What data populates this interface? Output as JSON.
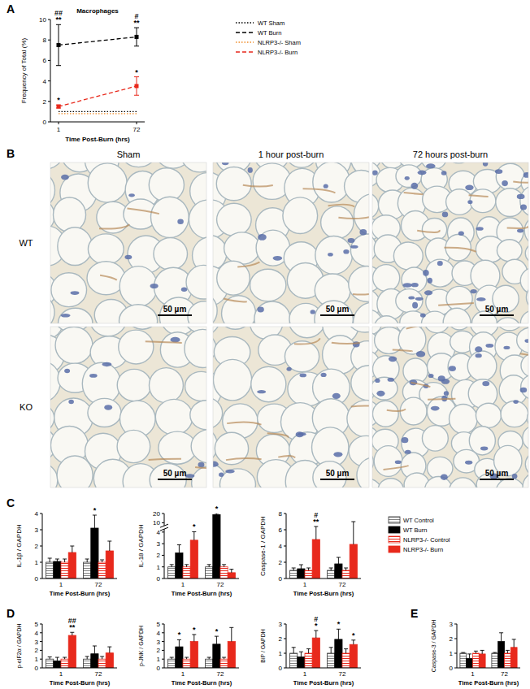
{
  "panel_labels": [
    "A",
    "B",
    "C",
    "D",
    "E"
  ],
  "chart_data": [
    {
      "type": "line",
      "title": "Macrophages",
      "x_label": "Time Post-Burn (hrs)",
      "y_label": "Frequency of Total (%)",
      "categories": [
        "1",
        "72"
      ],
      "ylim": [
        0,
        10
      ],
      "yticks": [
        0,
        2,
        4,
        6,
        8,
        10
      ],
      "legend": "right",
      "series": [
        {
          "name": "WT Sham",
          "color": "#000000",
          "line_style": "dotted",
          "marker": "none",
          "values": [
            1.0,
            1.0
          ]
        },
        {
          "name": "WT Burn",
          "color": "#000000",
          "line_style": "dashed",
          "marker": "square",
          "values": [
            7.5,
            8.3
          ],
          "errors": [
            2.0,
            0.9
          ]
        },
        {
          "name": "NLRP3-/- Sham",
          "color": "#f08c28",
          "line_style": "dotted",
          "marker": "none",
          "values": [
            0.8,
            0.8
          ]
        },
        {
          "name": "NLRP3-/- Burn",
          "color": "#e8291c",
          "line_style": "dashed",
          "marker": "square",
          "values": [
            1.5,
            3.5
          ],
          "errors": [
            0.15,
            0.9
          ]
        }
      ],
      "annotations": [
        {
          "text": "##",
          "x": "1",
          "series": "WT Burn"
        },
        {
          "text": "**",
          "x": "1",
          "series": "WT Burn"
        },
        {
          "text": "*",
          "x": "1",
          "series": "NLRP3-/- Burn"
        },
        {
          "text": "#",
          "x": "72",
          "series": "WT Burn"
        },
        {
          "text": "**",
          "x": "72",
          "series": "WT Burn"
        },
        {
          "text": "*",
          "x": "72",
          "series": "NLRP3-/- Burn"
        }
      ]
    },
    {
      "type": "bar",
      "x_label": "Time Post-Burn (hrs)",
      "y_label": "IL-1β / GAPDH",
      "categories": [
        "1",
        "72"
      ],
      "ylim": [
        0,
        4
      ],
      "yticks": [
        0,
        1,
        2,
        3,
        4
      ],
      "series": [
        {
          "name": "WT Control",
          "color": "#808080",
          "line_style": "hatched",
          "values": [
            1.0,
            1.0
          ],
          "errors": [
            0.25,
            0.2
          ]
        },
        {
          "name": "WT Burn",
          "color": "#000000",
          "line_style": "solid",
          "values": [
            1.05,
            3.1
          ],
          "errors": [
            0.15,
            0.8
          ]
        },
        {
          "name": "NLRP3-/- Control",
          "color": "#e8291c",
          "line_style": "hatched",
          "values": [
            1.0,
            1.0
          ],
          "errors": [
            0.2,
            0.15
          ]
        },
        {
          "name": "NLRP3-/- Burn",
          "color": "#e8291c",
          "line_style": "solid",
          "values": [
            1.6,
            1.7
          ],
          "errors": [
            0.4,
            0.6
          ]
        }
      ],
      "annotations": [
        {
          "text": "*",
          "x": "72",
          "series": "WT Burn"
        }
      ]
    },
    {
      "type": "bar",
      "x_label": "Time Post-Burn (hrs)",
      "y_label": "IL-18 / GAPDH",
      "categories": [
        "1",
        "72"
      ],
      "ylim": [
        0,
        20
      ],
      "yticks": [
        0,
        1,
        2,
        3,
        4,
        10,
        20
      ],
      "series": [
        {
          "name": "WT Control",
          "color": "#808080",
          "line_style": "hatched",
          "values": [
            1.0,
            1.0
          ],
          "errors": [
            0.2,
            0.2
          ]
        },
        {
          "name": "WT Burn",
          "color": "#000000",
          "line_style": "solid",
          "values": [
            2.2,
            18.8
          ],
          "errors": [
            0.7,
            1.2
          ]
        },
        {
          "name": "NLRP3-/- Control",
          "color": "#e8291c",
          "line_style": "hatched",
          "values": [
            1.0,
            1.0
          ],
          "errors": [
            0.2,
            0.2
          ]
        },
        {
          "name": "NLRP3-/- Burn",
          "color": "#e8291c",
          "line_style": "solid",
          "values": [
            3.3,
            0.5
          ],
          "errors": [
            0.9,
            0.3
          ]
        }
      ],
      "annotations": [
        {
          "text": "*",
          "x": "1",
          "series": "NLRP3-/- Burn"
        },
        {
          "text": "*",
          "x": "72",
          "series": "WT Burn"
        }
      ]
    },
    {
      "type": "bar",
      "x_label": "Time Post-Burn (hrs)",
      "y_label": "Caspase-1 / GAPDH",
      "categories": [
        "1",
        "72"
      ],
      "ylim": [
        0,
        8
      ],
      "yticks": [
        0,
        2,
        4,
        6,
        8
      ],
      "legend": "right",
      "series": [
        {
          "name": "WT Control",
          "color": "#808080",
          "line_style": "hatched",
          "values": [
            1.0,
            1.0
          ],
          "errors": [
            0.3,
            0.3
          ]
        },
        {
          "name": "WT Burn",
          "color": "#000000",
          "line_style": "solid",
          "values": [
            1.2,
            1.8
          ],
          "errors": [
            0.5,
            0.8
          ]
        },
        {
          "name": "NLRP3-/- Control",
          "color": "#e8291c",
          "line_style": "hatched",
          "values": [
            1.0,
            1.0
          ],
          "errors": [
            0.3,
            0.3
          ]
        },
        {
          "name": "NLRP3-/- Burn",
          "color": "#e8291c",
          "line_style": "solid",
          "values": [
            4.8,
            4.2
          ],
          "errors": [
            1.6,
            2.8
          ]
        }
      ],
      "annotations": [
        {
          "text": "#",
          "x": "1",
          "series": "NLRP3-/- Burn"
        },
        {
          "text": "**",
          "x": "1",
          "series": "NLRP3-/- Burn"
        }
      ]
    },
    {
      "type": "bar",
      "x_label": "Time Post-Burn (hrs)",
      "y_label": "p-eIF2α / GAPDH",
      "categories": [
        "1",
        "72"
      ],
      "ylim": [
        0,
        5
      ],
      "yticks": [
        0,
        1,
        2,
        3,
        4,
        5
      ],
      "series": [
        {
          "name": "WT Control",
          "color": "#808080",
          "line_style": "hatched",
          "values": [
            1.0,
            1.0
          ],
          "errors": [
            0.25,
            0.3
          ]
        },
        {
          "name": "WT Burn",
          "color": "#000000",
          "line_style": "solid",
          "values": [
            0.8,
            1.6
          ],
          "errors": [
            0.4,
            0.9
          ]
        },
        {
          "name": "NLRP3-/- Control",
          "color": "#e8291c",
          "line_style": "hatched",
          "values": [
            1.0,
            1.0
          ],
          "errors": [
            0.2,
            0.3
          ]
        },
        {
          "name": "NLRP3-/- Burn",
          "color": "#e8291c",
          "line_style": "solid",
          "values": [
            3.7,
            1.7
          ],
          "errors": [
            0.35,
            0.7
          ]
        }
      ],
      "annotations": [
        {
          "text": "##",
          "x": "1",
          "series": "NLRP3-/- Burn"
        },
        {
          "text": "**",
          "x": "1",
          "series": "NLRP3-/- Burn"
        }
      ]
    },
    {
      "type": "bar",
      "x_label": "Time Post-Burn (hrs)",
      "y_label": "p-JNK / GAPDH",
      "categories": [
        "1",
        "72"
      ],
      "ylim": [
        0,
        5
      ],
      "yticks": [
        0,
        1,
        2,
        3,
        4,
        5
      ],
      "series": [
        {
          "name": "WT Control",
          "color": "#808080",
          "line_style": "hatched",
          "values": [
            1.0,
            1.0
          ],
          "errors": [
            0.2,
            0.2
          ]
        },
        {
          "name": "WT Burn",
          "color": "#000000",
          "line_style": "solid",
          "values": [
            2.4,
            2.7
          ],
          "errors": [
            0.8,
            0.9
          ]
        },
        {
          "name": "NLRP3-/- Control",
          "color": "#e8291c",
          "line_style": "hatched",
          "values": [
            1.0,
            1.0
          ],
          "errors": [
            0.2,
            0.2
          ]
        },
        {
          "name": "NLRP3-/- Burn",
          "color": "#e8291c",
          "line_style": "solid",
          "values": [
            3.0,
            3.0
          ],
          "errors": [
            0.8,
            1.6
          ]
        }
      ],
      "annotations": [
        {
          "text": "*",
          "x": "1",
          "series": "WT Burn"
        },
        {
          "text": "*",
          "x": "1",
          "series": "NLRP3-/- Burn"
        },
        {
          "text": "*",
          "x": "72",
          "series": "WT Burn"
        }
      ]
    },
    {
      "type": "bar",
      "x_label": "Time Post-Burn (hrs)",
      "y_label": "BiP / GAPDH",
      "categories": [
        "1",
        "72"
      ],
      "ylim": [
        0,
        3
      ],
      "yticks": [
        0,
        1,
        2,
        3
      ],
      "series": [
        {
          "name": "WT Control",
          "color": "#808080",
          "line_style": "hatched",
          "values": [
            1.0,
            1.0
          ],
          "errors": [
            0.4,
            0.4
          ]
        },
        {
          "name": "WT Burn",
          "color": "#000000",
          "line_style": "solid",
          "values": [
            0.75,
            1.95
          ],
          "errors": [
            0.35,
            0.7
          ]
        },
        {
          "name": "NLRP3-/- Control",
          "color": "#e8291c",
          "line_style": "hatched",
          "values": [
            1.0,
            1.0
          ],
          "errors": [
            0.3,
            0.3
          ]
        },
        {
          "name": "NLRP3-/- Burn",
          "color": "#e8291c",
          "line_style": "solid",
          "values": [
            2.05,
            1.6
          ],
          "errors": [
            0.5,
            0.3
          ]
        }
      ],
      "annotations": [
        {
          "text": "#",
          "x": "1",
          "series": "NLRP3-/- Burn"
        },
        {
          "text": "*",
          "x": "1",
          "series": "NLRP3-/- Burn"
        },
        {
          "text": "*",
          "x": "72",
          "series": "WT Burn"
        },
        {
          "text": "*",
          "x": "72",
          "series": "NLRP3-/- Burn"
        }
      ]
    },
    {
      "type": "bar",
      "x_label": "Time Post-Burn (hrs)",
      "y_label": "Caspase-3 / GAPDH",
      "categories": [
        "1",
        "72"
      ],
      "ylim": [
        0,
        3
      ],
      "yticks": [
        0,
        1,
        2,
        3
      ],
      "series": [
        {
          "name": "WT Control",
          "color": "#808080",
          "line_style": "hatched",
          "values": [
            1.0,
            1.0
          ],
          "errors": [
            0.05,
            0.05
          ]
        },
        {
          "name": "WT Burn",
          "color": "#000000",
          "line_style": "solid",
          "values": [
            0.65,
            1.8
          ],
          "errors": [
            0.3,
            0.6
          ]
        },
        {
          "name": "NLRP3-/- Control",
          "color": "#e8291c",
          "line_style": "hatched",
          "values": [
            1.0,
            1.0
          ],
          "errors": [
            0.15,
            0.2
          ]
        },
        {
          "name": "NLRP3-/- Burn",
          "color": "#e8291c",
          "line_style": "solid",
          "values": [
            0.95,
            1.4
          ],
          "errors": [
            0.25,
            0.55
          ]
        }
      ],
      "annotations": []
    }
  ],
  "micrographs": {
    "columns": [
      "Sham",
      "1 hour post-burn",
      "72 hours post-burn"
    ],
    "rows": [
      "WT",
      "KO"
    ],
    "scale_bar": "50 µm"
  }
}
